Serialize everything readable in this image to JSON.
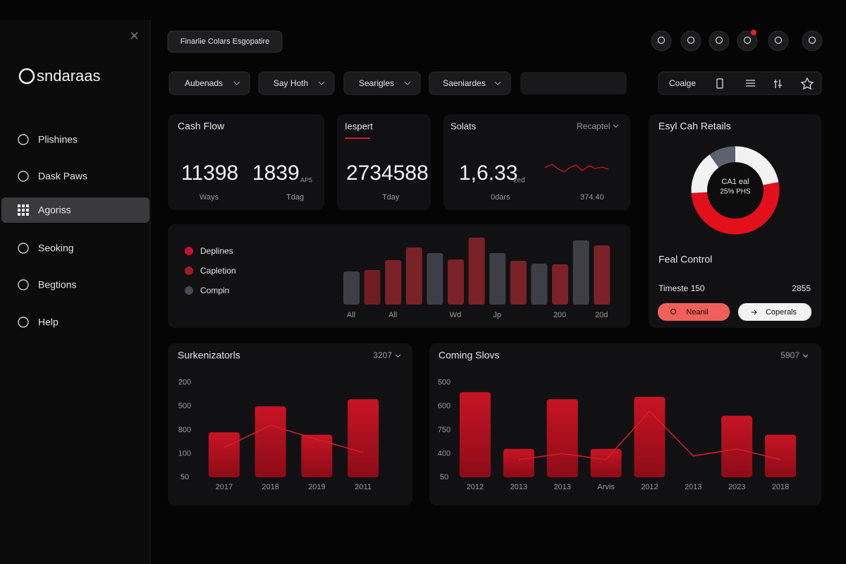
{
  "sidebar": {
    "brand": "sndaraas",
    "nav": [
      "Plishines",
      "Dask Paws",
      "Agoriss",
      "Seoking",
      "Begtions",
      "Help"
    ],
    "active": 2
  },
  "header": {
    "title": "Finarlie Colars Esgopatire",
    "filters": [
      "Aubenads",
      "Say Hoth",
      "Searigles",
      "Saeniardes"
    ],
    "toolbar": "Coaige"
  },
  "cards": {
    "cash_flow": {
      "title": "Cash Flow",
      "metrics": [
        {
          "value": "11398",
          "caption": "Ways"
        },
        {
          "value": "1839",
          "unit": "AP5",
          "caption": "Tdag"
        }
      ]
    },
    "iespert": {
      "title": "Iespert",
      "value": "2734588",
      "caption": "Tday"
    },
    "solats": {
      "title": "Solats",
      "dropdown": "Recaptel",
      "value": "1,6.33",
      "unit": "2ed",
      "caption": "0dars",
      "note": "374.40"
    },
    "retails": {
      "title": "Esyl Cah Retails",
      "center": [
        "CA1 eal",
        "25% PHS"
      ],
      "segments": [
        {
          "color": "#5d6270",
          "value": 10
        },
        {
          "color": "#f2f2f2",
          "value": 22
        },
        {
          "color": "#e3101c",
          "value": 52
        },
        {
          "color": "#f2f2f2",
          "value": 16
        }
      ]
    },
    "control": {
      "title": "Feal Control",
      "label": "Timeste 150",
      "value": "2855",
      "buttons": [
        "Neanil",
        "Coperals"
      ]
    }
  },
  "chart_data": [
    {
      "type": "bar",
      "legend": [
        {
          "name": "Deplines",
          "color": "#c8102e"
        },
        {
          "name": "Capletion",
          "color": "#9e1b24"
        },
        {
          "name": "Compin",
          "color": "#4a4a55"
        }
      ],
      "categories": [
        "All",
        null,
        "All",
        null,
        null,
        "Wd",
        null,
        "Jp",
        null,
        null,
        "200",
        null,
        "20d"
      ],
      "values": [
        47,
        49,
        63,
        81,
        73,
        64,
        95,
        73,
        62,
        58,
        57,
        91,
        84
      ],
      "colors": [
        "#3e3e46",
        "#6e1e22",
        "#7a2227",
        "#7a2227",
        "#3e3e46",
        "#7a2227",
        "#7a2227",
        "#3e3e46",
        "#7a2227",
        "#3e3e46",
        "#7a2227",
        "#3e3e46",
        "#7a2227"
      ],
      "ylim": [
        0,
        100
      ]
    },
    {
      "type": "bar",
      "title": "Surkenizatorls",
      "dropdown": "3207",
      "categories": [
        "2017",
        "2018",
        "2019",
        "2011"
      ],
      "series": [
        {
          "type": "bar",
          "color": "#c41423",
          "values": [
            1.9,
            3.0,
            1.8,
            3.3
          ]
        },
        {
          "type": "line",
          "color": "#d81b2b",
          "values": [
            1.25,
            2.2,
            1.6,
            1.05
          ]
        }
      ],
      "ylim": [
        0,
        4.5
      ],
      "yticks": [
        {
          "value": 0,
          "label": "50"
        },
        {
          "value": 1,
          "label": "100"
        },
        {
          "value": 2,
          "label": "800"
        },
        {
          "value": 3,
          "label": "500"
        },
        {
          "value": 4,
          "label": "200"
        }
      ]
    },
    {
      "type": "bar",
      "title": "Coming Slovs",
      "dropdown": "5907",
      "categories": [
        "2012",
        "2013",
        "2013",
        "Arvis",
        "2012",
        "2013",
        "2023",
        "2018"
      ],
      "series": [
        {
          "type": "bar",
          "color": "#c41423",
          "values": [
            3.6,
            1.2,
            3.3,
            1.2,
            3.4,
            null,
            2.6,
            1.8
          ]
        },
        {
          "type": "line",
          "color": "#d81b2b",
          "values": [
            null,
            0.75,
            1.0,
            0.75,
            2.8,
            0.9,
            1.2,
            0.75
          ]
        }
      ],
      "ylim": [
        0,
        4.5
      ],
      "yticks": [
        {
          "value": 0,
          "label": "50"
        },
        {
          "value": 1,
          "label": "400"
        },
        {
          "value": 2,
          "label": "750"
        },
        {
          "value": 3,
          "label": "600"
        },
        {
          "value": 4,
          "label": "500"
        }
      ]
    }
  ]
}
